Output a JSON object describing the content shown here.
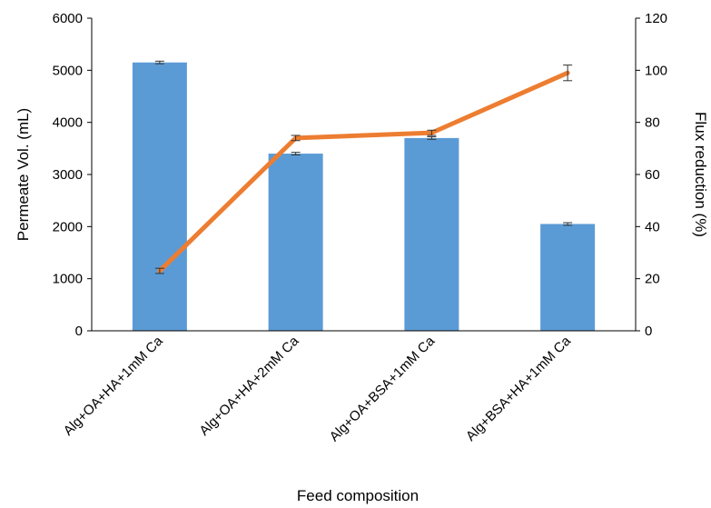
{
  "chart_data": {
    "type": "bar",
    "categories": [
      "Alg+OA+HA+1mM Ca",
      "Alg+OA+HA+2mM Ca",
      "Alg+OA+BSA+1mM Ca",
      "Alg+BSA+HA+1mM Ca"
    ],
    "series": [
      {
        "type": "bar",
        "axis": "left",
        "values": [
          5150,
          3400,
          3700,
          2050
        ],
        "error": [
          25,
          25,
          25,
          25
        ],
        "color": "#5B9BD5"
      },
      {
        "type": "line",
        "axis": "right",
        "values": [
          23,
          74,
          76,
          99
        ],
        "error": [
          1,
          1,
          1,
          3
        ],
        "color": "#ED7D31"
      }
    ],
    "xlabel": "Feed composition",
    "ylabel": "Permeate Vol. (mL)",
    "y2label": "Flux reduction (%)",
    "ylim": [
      0,
      6000
    ],
    "y2lim": [
      0,
      120
    ],
    "yticks": [
      0,
      1000,
      2000,
      3000,
      4000,
      5000,
      6000
    ],
    "y2ticks": [
      0,
      20,
      40,
      60,
      80,
      100,
      120
    ],
    "grid": false,
    "legend": "none"
  }
}
